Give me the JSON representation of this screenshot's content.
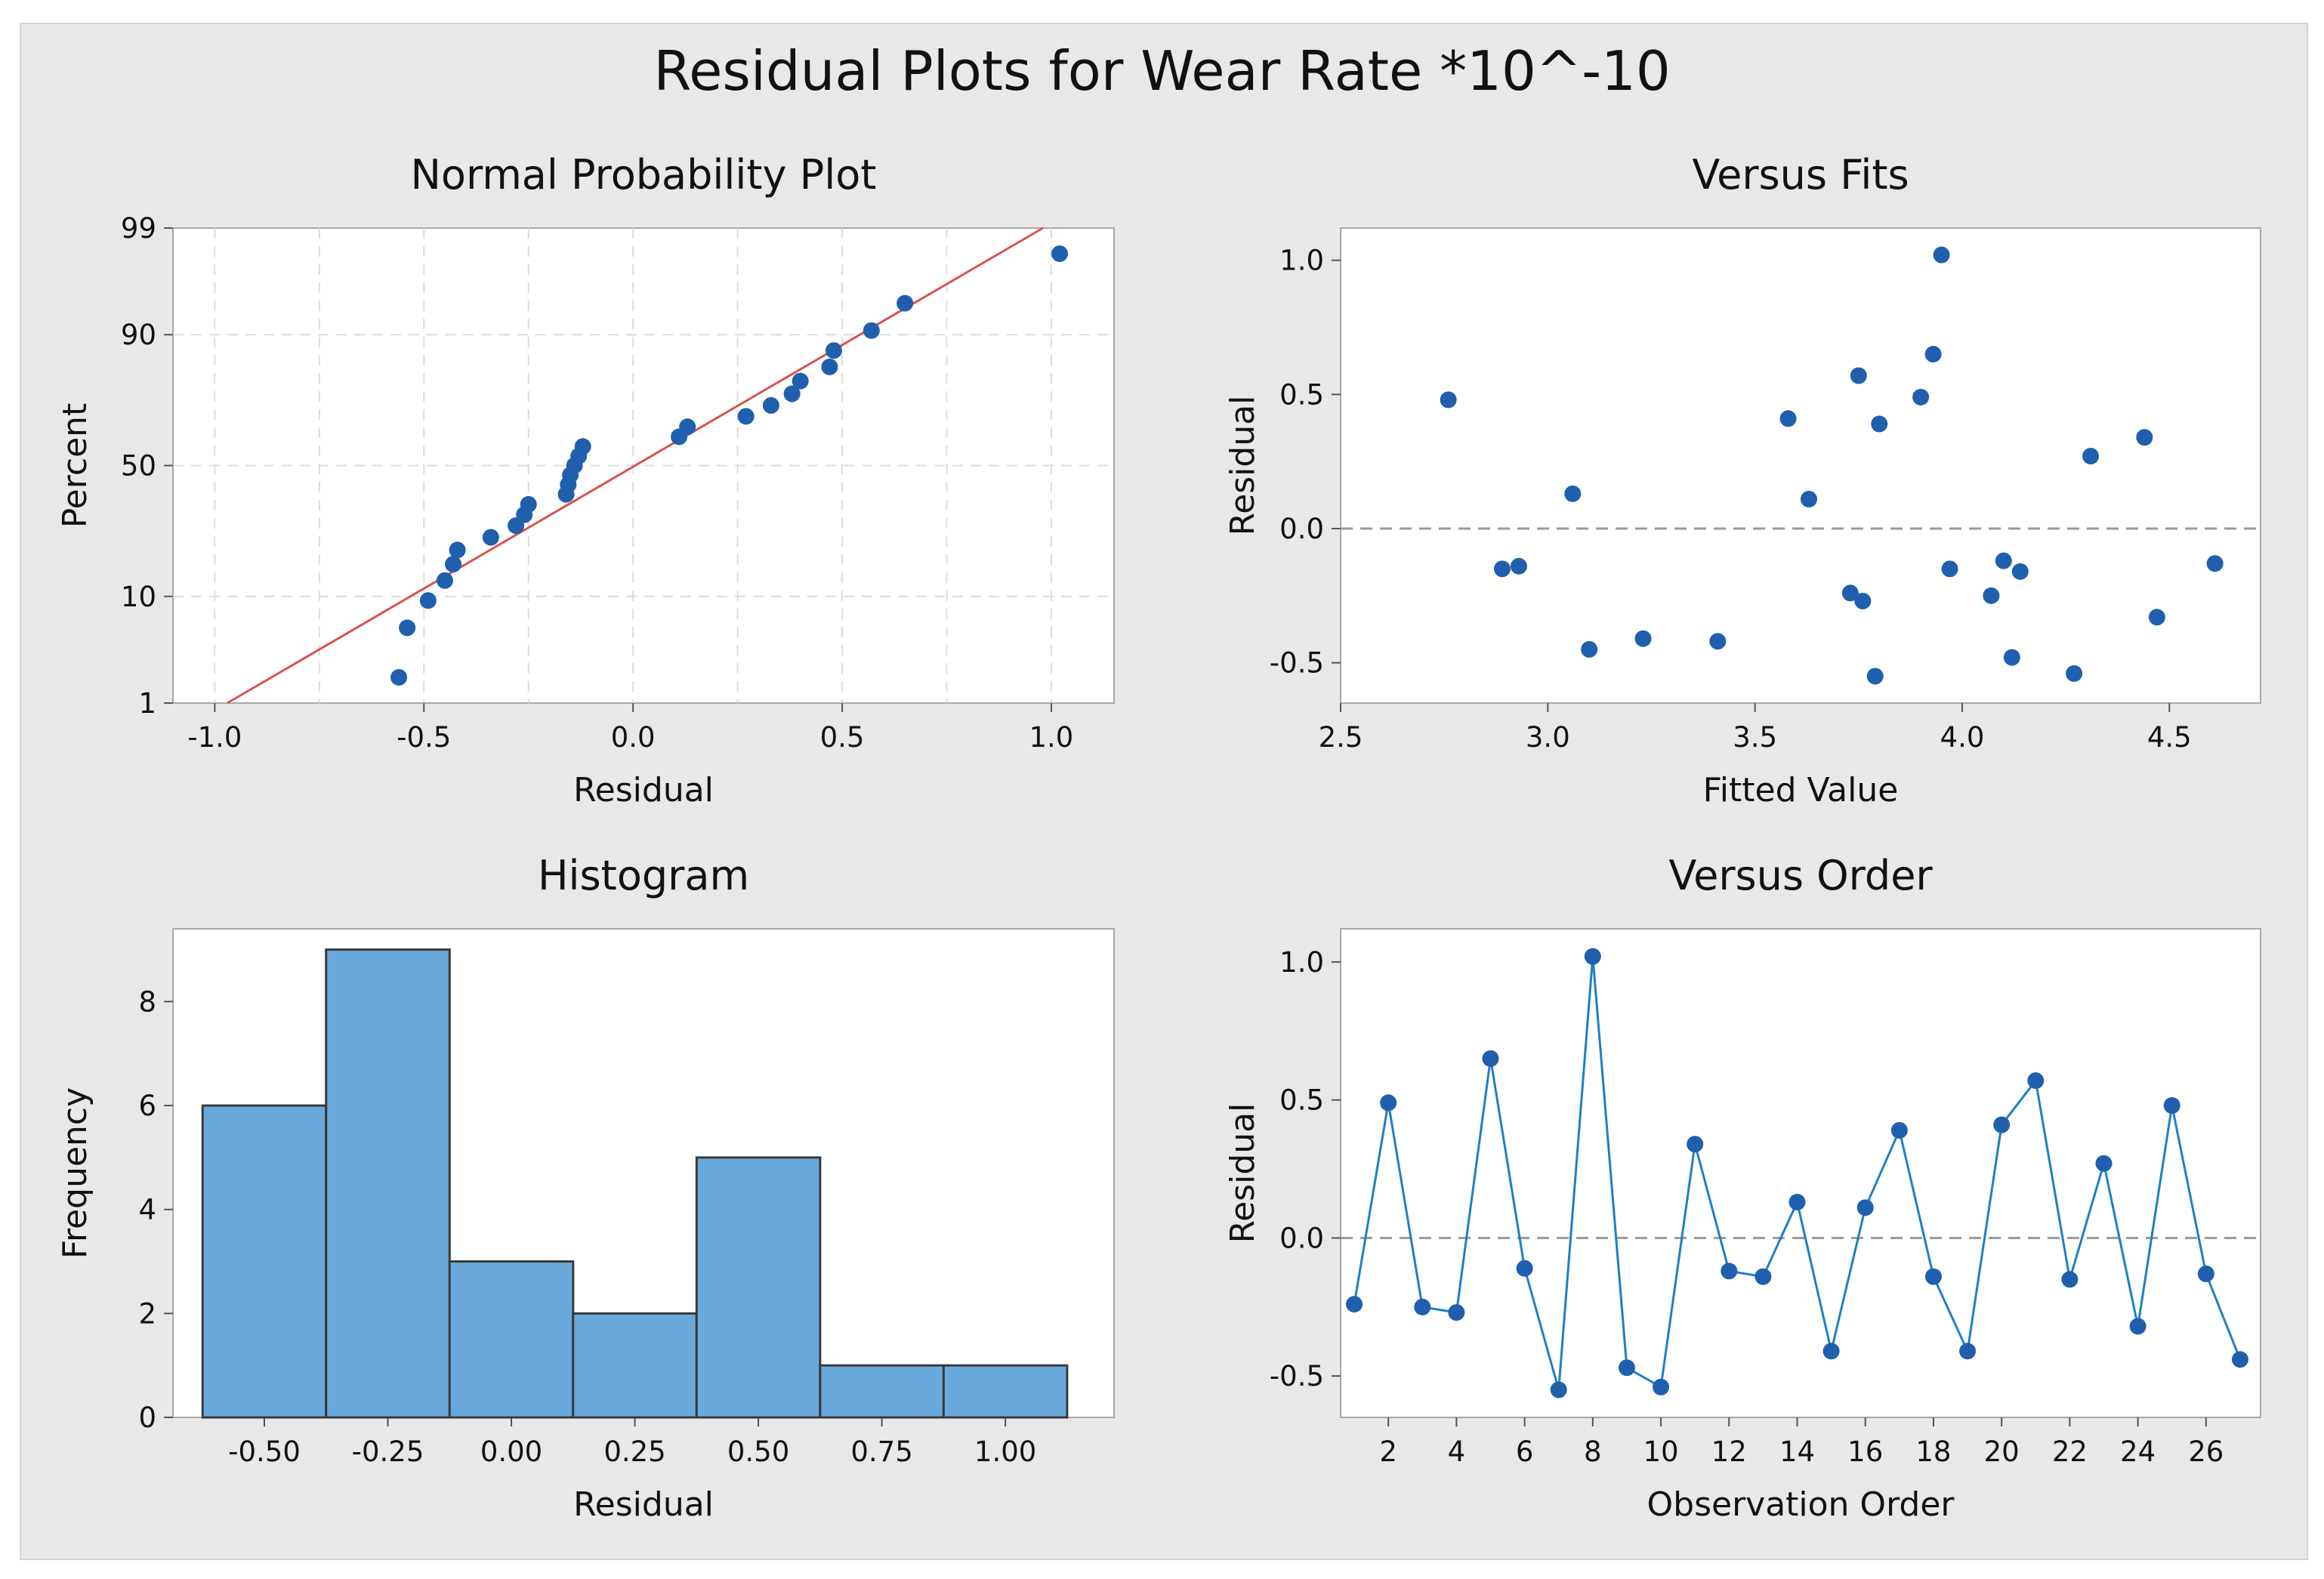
{
  "title": "Residual Plots for Wear Rate *10^-10",
  "colors": {
    "point": "#1f5fae",
    "line": "#1f7fc4",
    "bar": "#69a9dc",
    "bar_edge": "#3a3a3a",
    "fit_line": "#d9534f",
    "panel_bg": "#e8e8e8"
  },
  "chart_data": [
    {
      "id": "normal_probability",
      "type": "scatter",
      "title": "Normal Probability Plot",
      "xlabel": "Residual",
      "ylabel": "Percent",
      "xlim": [
        -1.1,
        1.15
      ],
      "xticks": [
        "-1.0",
        "-0.5",
        "0.0",
        "0.5",
        "1.0"
      ],
      "xtick_values": [
        -1.0,
        -0.5,
        0.0,
        0.5,
        1.0
      ],
      "yticks": [
        "1",
        "10",
        "50",
        "90",
        "99"
      ],
      "ytick_values": [
        1,
        10,
        50,
        90,
        99
      ],
      "y_scale": "normal-probability",
      "fit_line": {
        "x": [
          -0.97,
          0.98
        ],
        "percent": [
          1,
          99
        ]
      },
      "points": [
        {
          "x": -0.56,
          "p": 1.9
        },
        {
          "x": -0.54,
          "p": 5.6
        },
        {
          "x": -0.49,
          "p": 9.3
        },
        {
          "x": -0.45,
          "p": 13.0
        },
        {
          "x": -0.43,
          "p": 16.7
        },
        {
          "x": -0.42,
          "p": 20.4
        },
        {
          "x": -0.34,
          "p": 24.1
        },
        {
          "x": -0.28,
          "p": 27.8
        },
        {
          "x": -0.26,
          "p": 31.5
        },
        {
          "x": -0.25,
          "p": 35.2
        },
        {
          "x": -0.16,
          "p": 38.9
        },
        {
          "x": -0.155,
          "p": 42.6
        },
        {
          "x": -0.15,
          "p": 46.3
        },
        {
          "x": -0.14,
          "p": 50.0
        },
        {
          "x": -0.13,
          "p": 53.7
        },
        {
          "x": -0.12,
          "p": 57.4
        },
        {
          "x": 0.11,
          "p": 61.1
        },
        {
          "x": 0.13,
          "p": 64.8
        },
        {
          "x": 0.27,
          "p": 68.5
        },
        {
          "x": 0.33,
          "p": 72.2
        },
        {
          "x": 0.38,
          "p": 75.9
        },
        {
          "x": 0.4,
          "p": 79.6
        },
        {
          "x": 0.47,
          "p": 83.3
        },
        {
          "x": 0.48,
          "p": 87.0
        },
        {
          "x": 0.57,
          "p": 90.7
        },
        {
          "x": 0.65,
          "p": 94.4
        },
        {
          "x": 1.02,
          "p": 98.1
        }
      ]
    },
    {
      "id": "versus_fits",
      "type": "scatter",
      "title": "Versus Fits",
      "xlabel": "Fitted Value",
      "ylabel": "Residual",
      "xlim": [
        2.5,
        4.72
      ],
      "ylim": [
        -0.65,
        1.12
      ],
      "xticks": [
        "2.5",
        "3.0",
        "3.5",
        "4.0",
        "4.5"
      ],
      "xtick_values": [
        2.5,
        3.0,
        3.5,
        4.0,
        4.5
      ],
      "yticks": [
        "-0.5",
        "0.0",
        "0.5",
        "1.0"
      ],
      "ytick_values": [
        -0.5,
        0.0,
        0.5,
        1.0
      ],
      "reference_line": 0.0,
      "points": [
        {
          "x": 2.76,
          "y": 0.48
        },
        {
          "x": 2.89,
          "y": -0.15
        },
        {
          "x": 2.93,
          "y": -0.14
        },
        {
          "x": 3.06,
          "y": 0.13
        },
        {
          "x": 3.1,
          "y": -0.45
        },
        {
          "x": 3.23,
          "y": -0.41
        },
        {
          "x": 3.41,
          "y": -0.42
        },
        {
          "x": 3.58,
          "y": 0.41
        },
        {
          "x": 3.63,
          "y": 0.11
        },
        {
          "x": 3.73,
          "y": -0.24
        },
        {
          "x": 3.75,
          "y": 0.57
        },
        {
          "x": 3.76,
          "y": -0.27
        },
        {
          "x": 3.79,
          "y": -0.55
        },
        {
          "x": 3.8,
          "y": 0.39
        },
        {
          "x": 3.9,
          "y": 0.49
        },
        {
          "x": 3.93,
          "y": 0.65
        },
        {
          "x": 3.95,
          "y": 1.02
        },
        {
          "x": 3.97,
          "y": -0.15
        },
        {
          "x": 4.07,
          "y": -0.25
        },
        {
          "x": 4.1,
          "y": -0.12
        },
        {
          "x": 4.12,
          "y": -0.48
        },
        {
          "x": 4.14,
          "y": -0.16
        },
        {
          "x": 4.27,
          "y": -0.54
        },
        {
          "x": 4.31,
          "y": 0.27
        },
        {
          "x": 4.44,
          "y": 0.34
        },
        {
          "x": 4.47,
          "y": -0.33
        },
        {
          "x": 4.61,
          "y": -0.13
        }
      ]
    },
    {
      "id": "histogram",
      "type": "bar",
      "title": "Histogram",
      "xlabel": "Residual",
      "ylabel": "Frequency",
      "xlim": [
        -0.685,
        1.22
      ],
      "ylim": [
        0,
        9.4
      ],
      "xticks": [
        "-0.50",
        "-0.25",
        "0.00",
        "0.25",
        "0.50",
        "0.75",
        "1.00"
      ],
      "xtick_values": [
        -0.5,
        -0.25,
        0.0,
        0.25,
        0.5,
        0.75,
        1.0
      ],
      "yticks": [
        "0",
        "2",
        "4",
        "6",
        "8"
      ],
      "ytick_values": [
        0,
        2,
        4,
        6,
        8
      ],
      "bins": [
        {
          "from": -0.625,
          "to": -0.375,
          "count": 6
        },
        {
          "from": -0.375,
          "to": -0.125,
          "count": 9
        },
        {
          "from": -0.125,
          "to": 0.125,
          "count": 3
        },
        {
          "from": 0.125,
          "to": 0.375,
          "count": 2
        },
        {
          "from": 0.375,
          "to": 0.625,
          "count": 5
        },
        {
          "from": 0.625,
          "to": 0.875,
          "count": 1
        },
        {
          "from": 0.875,
          "to": 1.125,
          "count": 1
        }
      ]
    },
    {
      "id": "versus_order",
      "type": "line",
      "title": "Versus Order",
      "xlabel": "Observation Order",
      "ylabel": "Residual",
      "xlim": [
        0.6,
        27.6
      ],
      "ylim": [
        -0.65,
        1.12
      ],
      "xticks": [
        "2",
        "4",
        "6",
        "8",
        "10",
        "12",
        "14",
        "16",
        "18",
        "20",
        "22",
        "24",
        "26"
      ],
      "xtick_values": [
        2,
        4,
        6,
        8,
        10,
        12,
        14,
        16,
        18,
        20,
        22,
        24,
        26
      ],
      "yticks": [
        "-0.5",
        "0.0",
        "0.5",
        "1.0"
      ],
      "ytick_values": [
        -0.5,
        0.0,
        0.5,
        1.0
      ],
      "reference_line": 0.0,
      "x": [
        1,
        2,
        3,
        4,
        5,
        6,
        7,
        8,
        9,
        10,
        11,
        12,
        13,
        14,
        15,
        16,
        17,
        18,
        19,
        20,
        21,
        22,
        23,
        24,
        25,
        26,
        27
      ],
      "values": [
        -0.24,
        0.49,
        -0.25,
        -0.27,
        0.65,
        -0.11,
        -0.55,
        1.02,
        -0.47,
        -0.54,
        0.34,
        -0.12,
        -0.14,
        0.13,
        -0.41,
        0.11,
        0.39,
        -0.14,
        -0.41,
        0.41,
        0.57,
        -0.15,
        0.27,
        -0.32,
        0.48,
        -0.13,
        -0.44
      ]
    }
  ]
}
